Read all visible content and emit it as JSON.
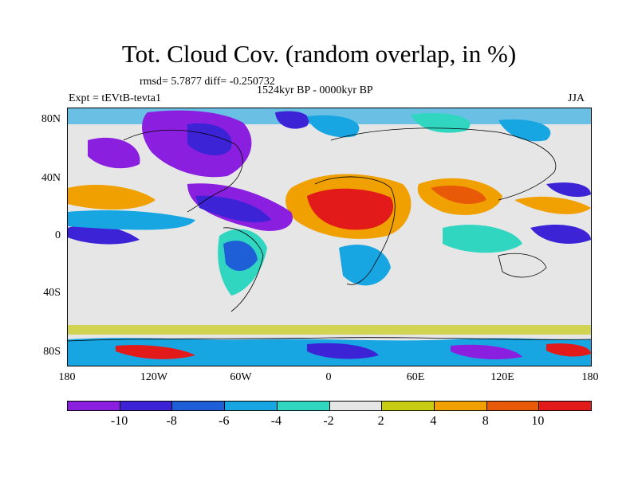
{
  "title": "Tot. Cloud Cov. (random overlap, in %)",
  "stats": "rmsd= 5.7877  diff= -0.250732",
  "period": "1524kyr BP - 0000kyr BP",
  "experiment": "Expt = tEVtB-tevta1",
  "season": "JJA",
  "y_ticks": [
    "80N",
    "40N",
    "0",
    "40S",
    "80S"
  ],
  "x_ticks": [
    "180",
    "120W",
    "60W",
    "0",
    "60E",
    "120E",
    "180"
  ],
  "colorbar": {
    "colors": [
      "#8a1fe0",
      "#3c23d6",
      "#1e5fd8",
      "#18a6e3",
      "#30d6c0",
      "#e6e6e6",
      "#c8cc12",
      "#f0a000",
      "#e85a08",
      "#e31a1a"
    ],
    "labels": [
      "-10",
      "-8",
      "-6",
      "-4",
      "-2",
      "2",
      "4",
      "8",
      "10"
    ]
  }
}
